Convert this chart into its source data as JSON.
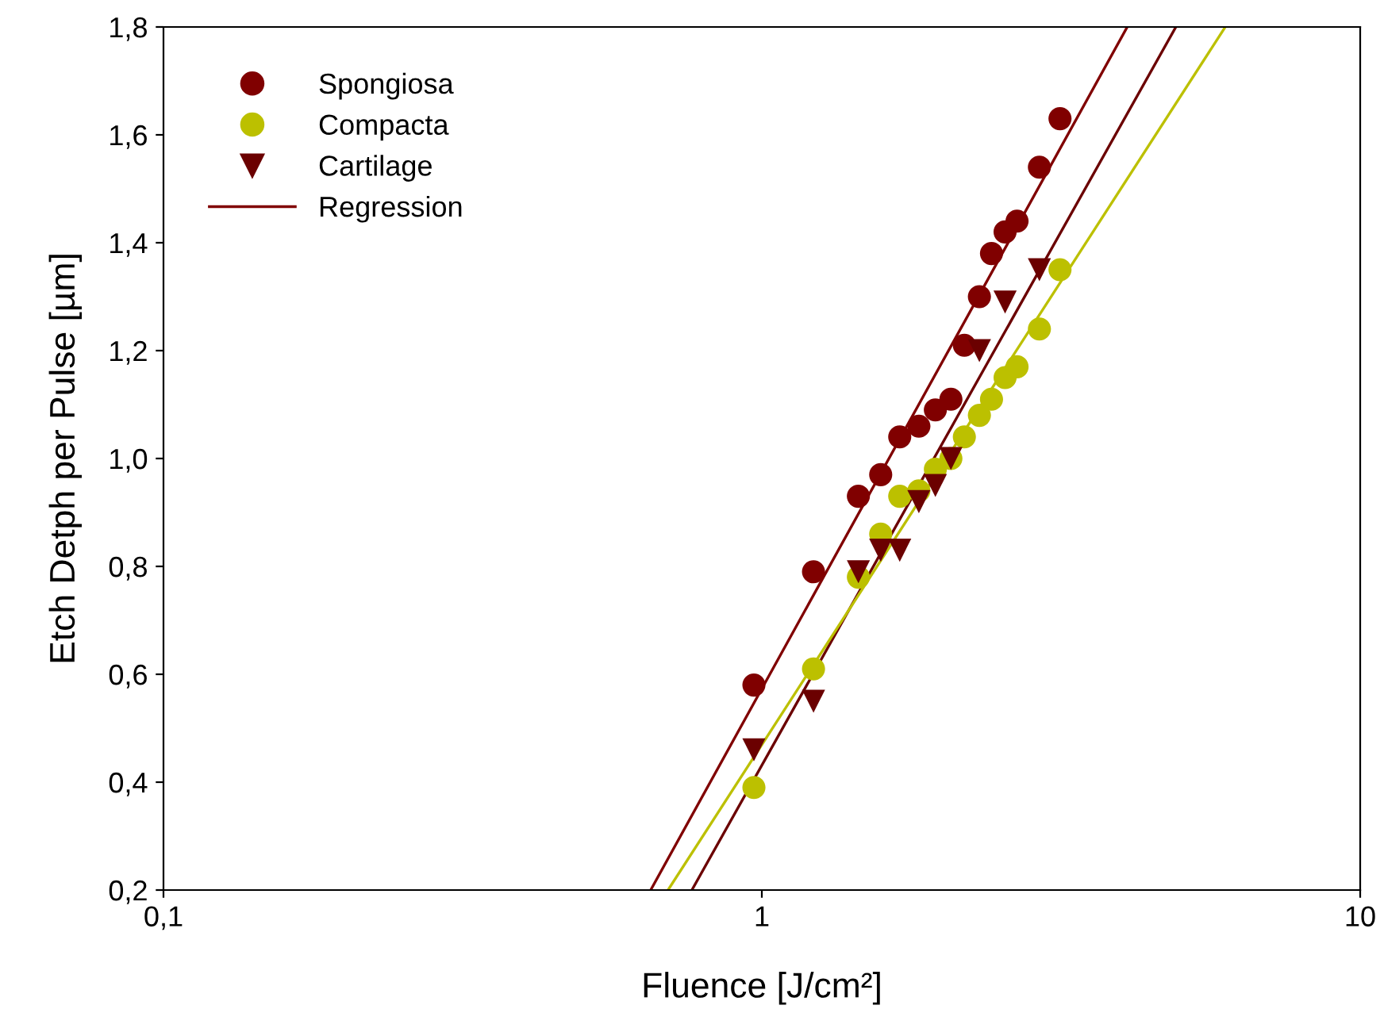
{
  "chart_data": {
    "type": "scatter",
    "xlabel": "Fluence [J/cm²]",
    "ylabel": "Etch Detph per Pulse [µm]",
    "log": "x",
    "grid": false,
    "legend": "top left",
    "xlim": [
      0.1,
      10
    ],
    "xticks": [
      {
        "value": 0.1,
        "label": "0,1"
      },
      1,
      10
    ],
    "ylim": [
      0.2,
      1.8
    ],
    "yticks": [
      {
        "value": 0.2,
        "label": "0,2"
      },
      {
        "value": 0.4,
        "label": "0,4"
      },
      {
        "value": 0.6,
        "label": "0,6"
      },
      {
        "value": 0.8,
        "label": "0,8"
      },
      {
        "value": 1.0,
        "label": "1,0"
      },
      {
        "value": 1.2,
        "label": "1,2"
      },
      {
        "value": 1.4,
        "label": "1,4"
      },
      {
        "value": 1.6,
        "label": "1,6"
      },
      {
        "value": 1.8,
        "label": "1,8"
      }
    ],
    "series": [
      {
        "name": "Spongiosa",
        "marker": "circle",
        "color": "#800000",
        "x": [
          0.97,
          1.22,
          1.45,
          1.58,
          1.7,
          1.83,
          1.95,
          2.07,
          2.18,
          2.31,
          2.42,
          2.55,
          2.67,
          2.91,
          3.15
        ],
        "values": [
          0.58,
          0.79,
          0.93,
          0.97,
          1.04,
          1.06,
          1.09,
          1.11,
          1.21,
          1.3,
          1.38,
          1.42,
          1.44,
          1.54,
          1.63
        ]
      },
      {
        "name": "Compacta",
        "marker": "circle",
        "color": "#bcc000",
        "x": [
          0.97,
          1.22,
          1.45,
          1.58,
          1.7,
          1.83,
          1.95,
          2.07,
          2.18,
          2.31,
          2.42,
          2.55,
          2.67,
          2.91,
          3.15
        ],
        "values": [
          0.39,
          0.61,
          0.78,
          0.86,
          0.93,
          0.94,
          0.98,
          1.0,
          1.04,
          1.08,
          1.11,
          1.15,
          1.17,
          1.24,
          1.35
        ]
      },
      {
        "name": "Cartilage",
        "marker": "triangle",
        "color": "#6b0000",
        "x": [
          0.97,
          1.22,
          1.45,
          1.58,
          1.7,
          1.83,
          1.95,
          2.07,
          2.31,
          2.55,
          2.91
        ],
        "values": [
          0.46,
          0.55,
          0.79,
          0.83,
          0.83,
          0.92,
          0.95,
          1.0,
          1.2,
          1.29,
          1.35
        ]
      },
      {
        "name": "Regression",
        "type": "line",
        "line_style": "solid",
        "color": "#800000",
        "x": [
          0.652,
          4.08
        ],
        "values": [
          0.2,
          1.8
        ]
      },
      {
        "type": "line",
        "line_style": "solid",
        "color": "#6b0000",
        "x": [
          0.764,
          4.92
        ],
        "values": [
          0.2,
          1.8
        ]
      },
      {
        "type": "line",
        "line_style": "solid",
        "color": "#bcc000",
        "x": [
          0.697,
          5.95
        ],
        "values": [
          0.2,
          1.8
        ]
      }
    ]
  }
}
